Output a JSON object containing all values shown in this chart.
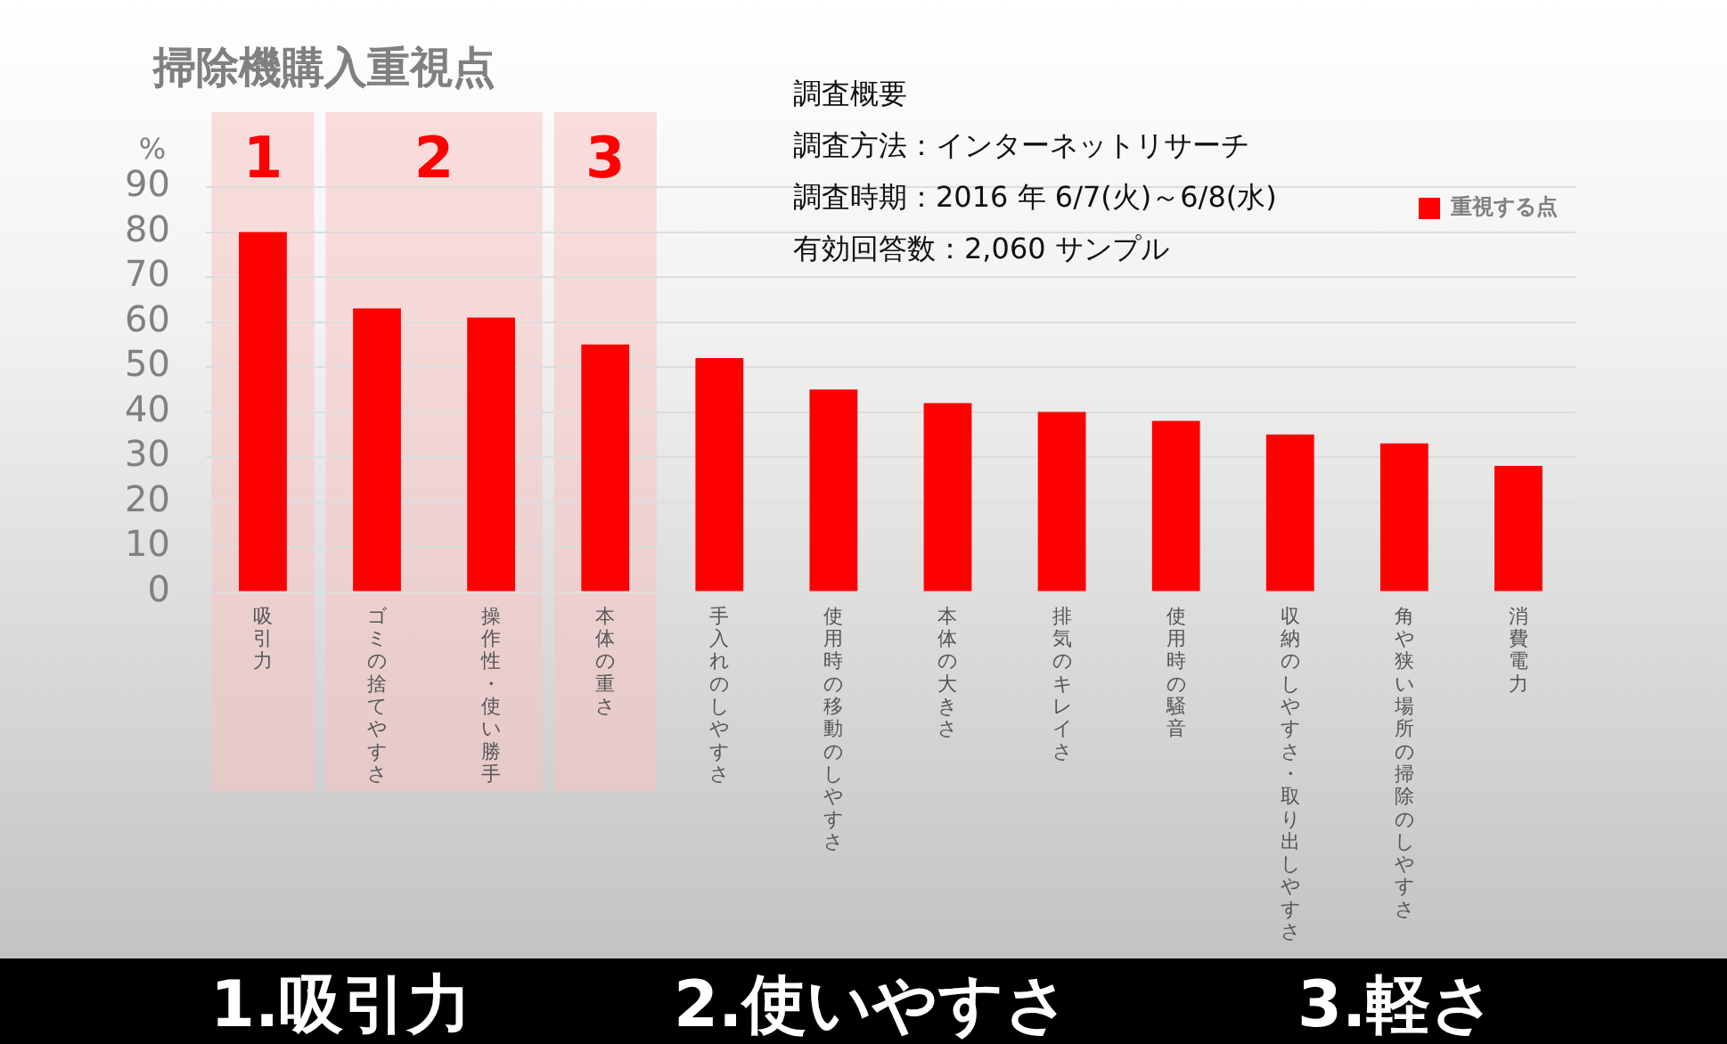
{
  "chart_data": {
    "type": "bar",
    "title": "掃除機購入重視点",
    "ylabel": "%",
    "categories": [
      "吸引力",
      "ゴミの捨てやすさ",
      "操作性・使い勝手",
      "本体の重さ",
      "手入れのしやすさ",
      "使用時の移動のしやすさ",
      "本体の大きさ",
      "排気のキレイさ",
      "使用時の騒音",
      "収納のしやすさ・取り出しやすさ",
      "角や狭い場所の掃除のしやすさ",
      "消費電力"
    ],
    "series": [
      {
        "name": "重視する点",
        "color": "#ff0000",
        "values": [
          80,
          63,
          61,
          55,
          52,
          45,
          42,
          40,
          38,
          35,
          33,
          28
        ]
      }
    ],
    "ylim": [
      0,
      90
    ],
    "yticks": [
      0,
      10,
      20,
      30,
      40,
      50,
      60,
      70,
      80,
      90
    ],
    "grid": "y",
    "legend": "top right",
    "bands": [
      {
        "axis": "x",
        "from": "吸引力",
        "to": "吸引力",
        "label": "1",
        "color": "#f7c4c4"
      },
      {
        "axis": "x",
        "from": "ゴミの捨てやすさ",
        "to": "操作性・使い勝手",
        "label": "2",
        "color": "#f7c4c4"
      },
      {
        "axis": "x",
        "from": "本体の重さ",
        "to": "本体の重さ",
        "label": "3",
        "color": "#f7c4c4"
      }
    ],
    "annotations": [
      "調査概要",
      "調査方法：インターネットリサーチ",
      "調査時期：2016 年 6/7(火)～6/8(水)",
      "有効回答数：2,060 サンプル",
      "1.吸引力",
      "2.使いやすさ",
      "3.軽さ"
    ]
  }
}
